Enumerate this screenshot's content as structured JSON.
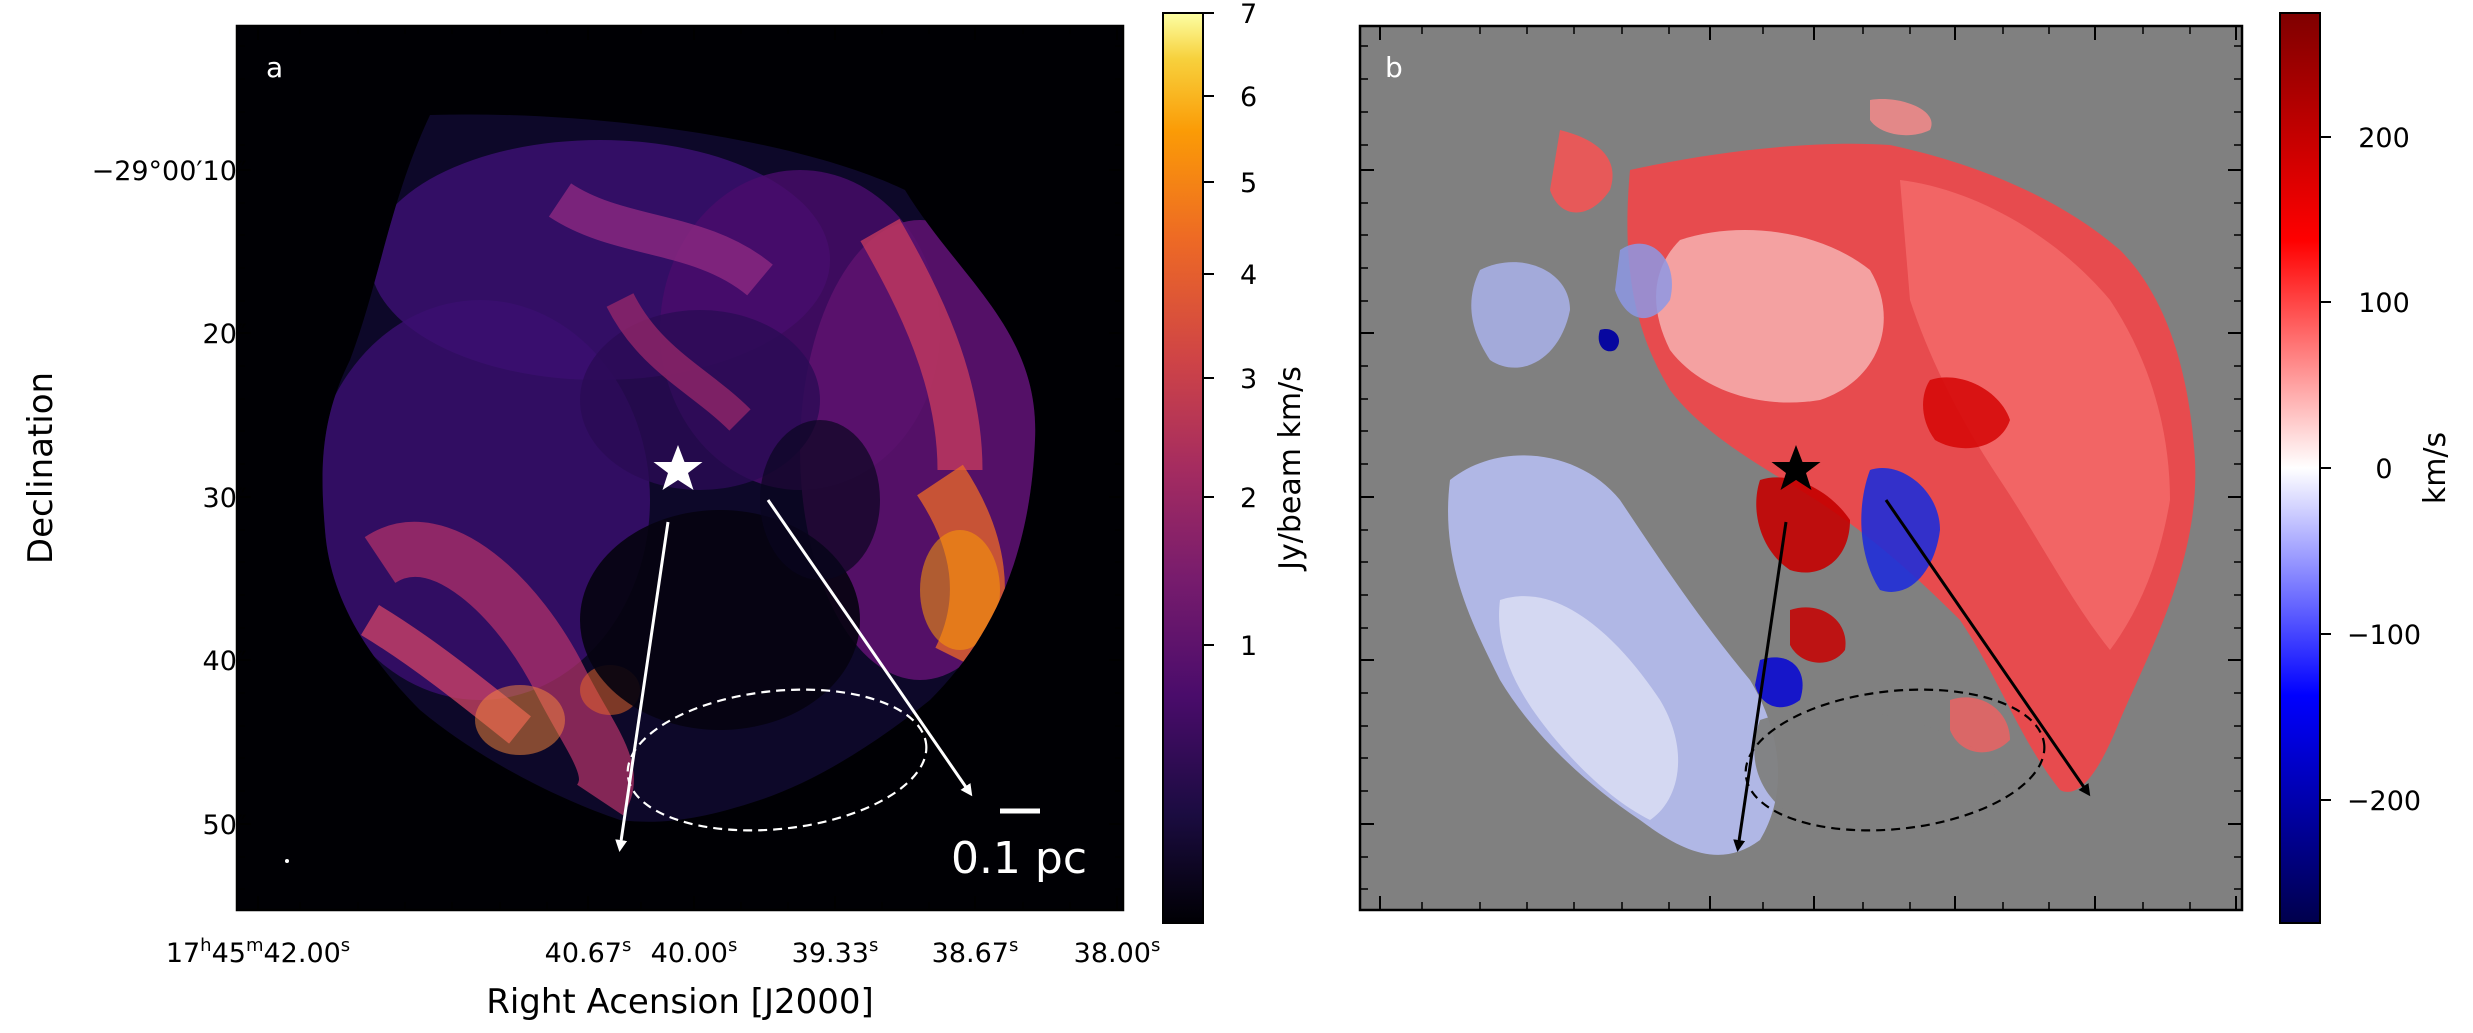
{
  "figure": {
    "panel_a": {
      "label": "a",
      "ylabel": "Declination",
      "xlabel": "Right Acension [J2000]",
      "y_ticks": [
        "−29°00′10″",
        "20″",
        "30″",
        "40″",
        "50″"
      ],
      "x_ticks": {
        "t1": {
          "base": "17",
          "h": "h",
          "m_base": "45",
          "m": "m",
          "s_base": "42.00",
          "s": "s"
        },
        "t2": {
          "base": "40.67",
          "s": "s"
        },
        "t3": {
          "base": "40.00",
          "s": "s"
        },
        "t4": {
          "base": "39.33",
          "s": "s"
        },
        "t5": {
          "base": "38.67",
          "s": "s"
        },
        "t6": {
          "base": "38.00",
          "s": "s"
        }
      },
      "scalebar_label": "0.1 pc",
      "colorbar": {
        "label": "Jy/beam km/s",
        "ticks": [
          "7",
          "6",
          "5",
          "4",
          "3",
          "2",
          "1"
        ],
        "colormap": "inferno",
        "scale": "log"
      }
    },
    "panel_b": {
      "label": "b",
      "colorbar": {
        "label": "km/s",
        "ticks": [
          "200",
          "100",
          "0",
          "−100",
          "−200"
        ],
        "colormap": "seismic",
        "range": [
          -270,
          270
        ]
      }
    },
    "colors": {
      "panel_a_bg": "#000004",
      "panel_b_bg": "#808080",
      "emission_dim": "#3b0f70",
      "emission_mid": "#8c2981",
      "emission_bright": "#de4968",
      "emission_peak": "#fc8a3b",
      "vel_red": "#f0474a",
      "vel_blue": "#b4bcee"
    }
  }
}
